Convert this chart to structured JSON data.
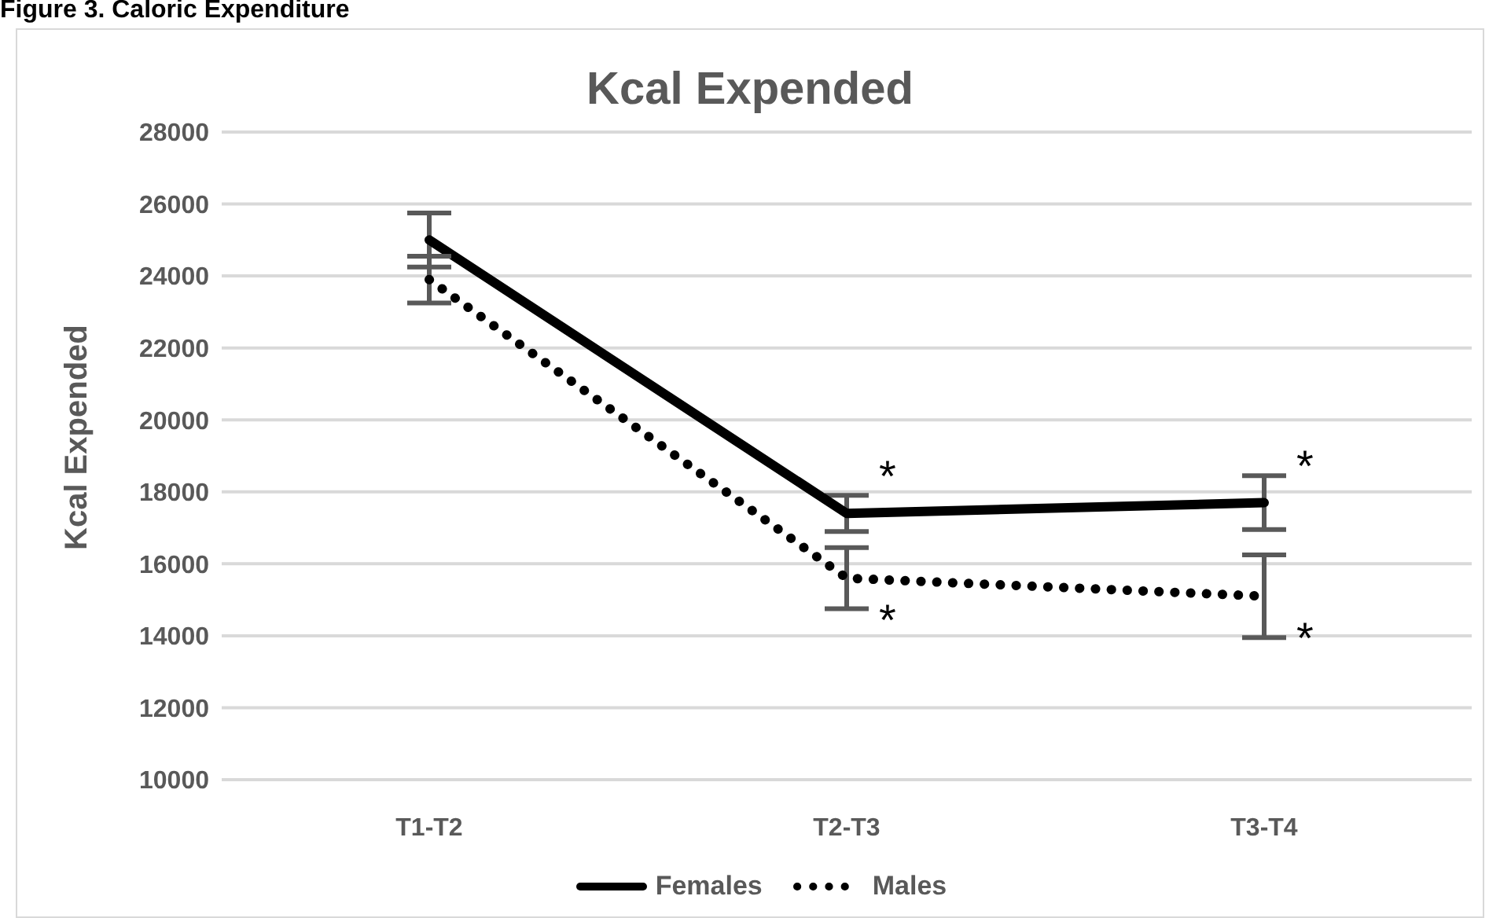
{
  "chart_data": {
    "type": "line",
    "title": "Kcal Expended",
    "ylabel": "Kcal Expended",
    "categories": [
      "T1-T2",
      "T2-T3",
      "T3-T4"
    ],
    "series": [
      {
        "name": "Females",
        "color": "#000000",
        "line_style": "solid",
        "values": [
          25000,
          17400,
          17700
        ],
        "errors": [
          750,
          500,
          750
        ]
      },
      {
        "name": "Males",
        "color": "#000000",
        "line_style": "dotted",
        "values": [
          23900,
          15600,
          15100
        ],
        "errors": [
          650,
          850,
          1150
        ]
      }
    ],
    "ylim": [
      10000,
      28000
    ],
    "yticks": [
      10000,
      12000,
      14000,
      16000,
      18000,
      20000,
      22000,
      24000,
      26000,
      28000
    ],
    "grid": "y",
    "legend": "bottom",
    "marker": "none",
    "annotations": [
      "Figure 3. Caloric Expenditure",
      {
        "text": "*",
        "x": "T2-T3",
        "y": 17400
      },
      {
        "text": "*",
        "x": "T2-T3",
        "y": 15600
      },
      {
        "text": "*",
        "x": "T3-T4",
        "y": 17700
      },
      {
        "text": "*",
        "x": "T3-T4",
        "y": 15100
      }
    ]
  }
}
